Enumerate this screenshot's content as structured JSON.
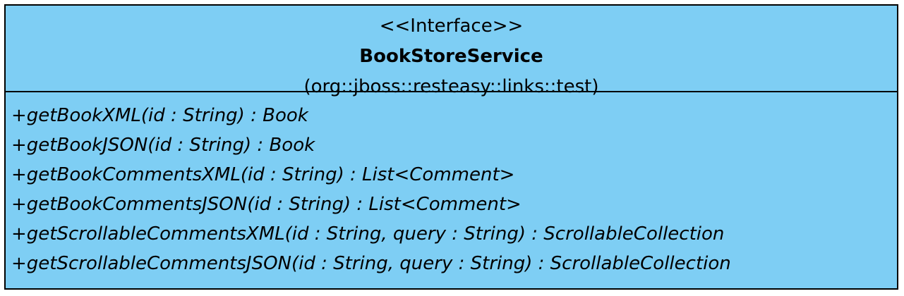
{
  "colors": {
    "fill": "#7ecef4",
    "border": "#000000",
    "text": "#000000"
  },
  "class": {
    "stereotype": "<<Interface>>",
    "name": "BookStoreService",
    "package": "(org::jboss::resteasy::links::test)"
  },
  "operations": [
    "+getBookXML(id : String) : Book",
    "+getBookJSON(id : String) : Book",
    "+getBookCommentsXML(id : String) : List<Comment>",
    "+getBookCommentsJSON(id : String) : List<Comment>",
    "+getScrollableCommentsXML(id : String, query : String) : ScrollableCollection",
    "+getScrollableCommentsJSON(id : String, query : String) : ScrollableCollection"
  ]
}
